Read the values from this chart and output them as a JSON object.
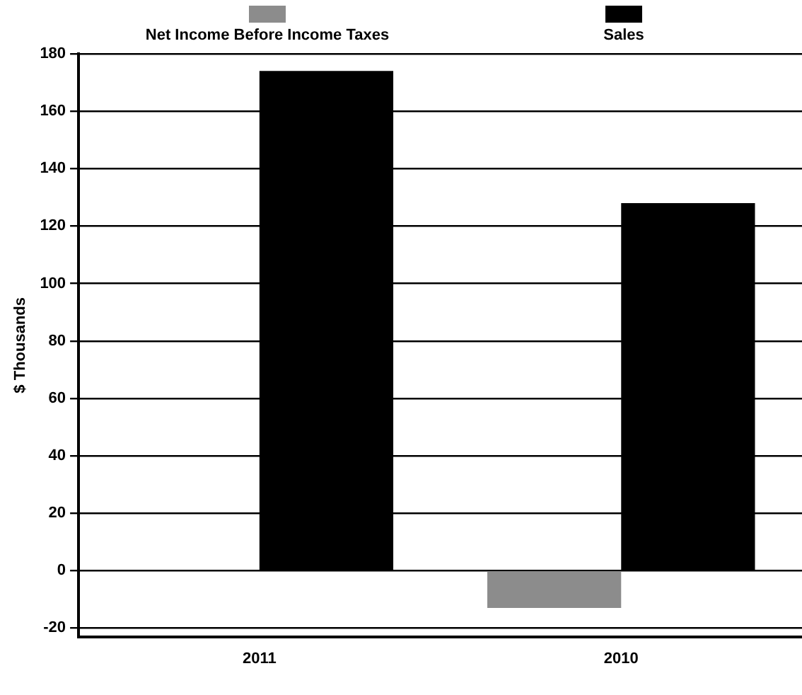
{
  "chart_data": {
    "type": "bar",
    "ylabel": "$ Thousands",
    "categories": [
      "2011",
      "2010"
    ],
    "series": [
      {
        "name": "Net Income Before Income Taxes",
        "color": "#8c8c8c",
        "values": [
          0,
          -13
        ]
      },
      {
        "name": "Sales",
        "color": "#000000",
        "values": [
          174,
          128
        ]
      }
    ],
    "ylim": [
      -23,
      180
    ],
    "yticks": [
      -20,
      0,
      20,
      40,
      60,
      80,
      100,
      120,
      140,
      160,
      180
    ],
    "grid": "y",
    "legend": "top"
  }
}
